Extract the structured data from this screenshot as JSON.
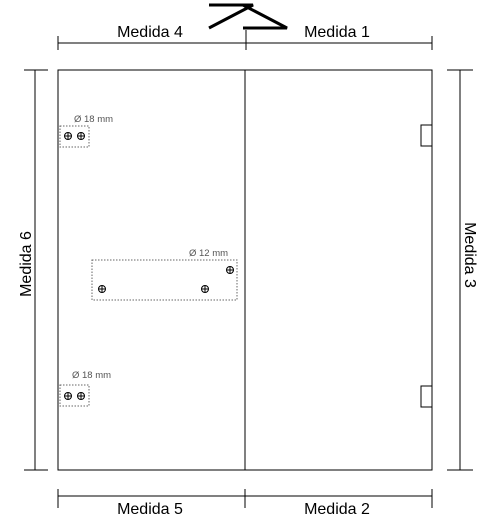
{
  "measures": {
    "top_left": "Medida 4",
    "top_right": "Medida 1",
    "bottom_left": "Medida 5",
    "bottom_right": "Medida 2",
    "left": "Medida 6",
    "right": "Medida 3"
  },
  "holes": {
    "top_group_label": "Ø 18 mm",
    "middle_group_label": "Ø 12 mm",
    "bottom_group_label": "Ø 18 mm"
  },
  "colors": {
    "line": "#000000",
    "dotted_box": "#666666",
    "label_small": "#555555"
  }
}
